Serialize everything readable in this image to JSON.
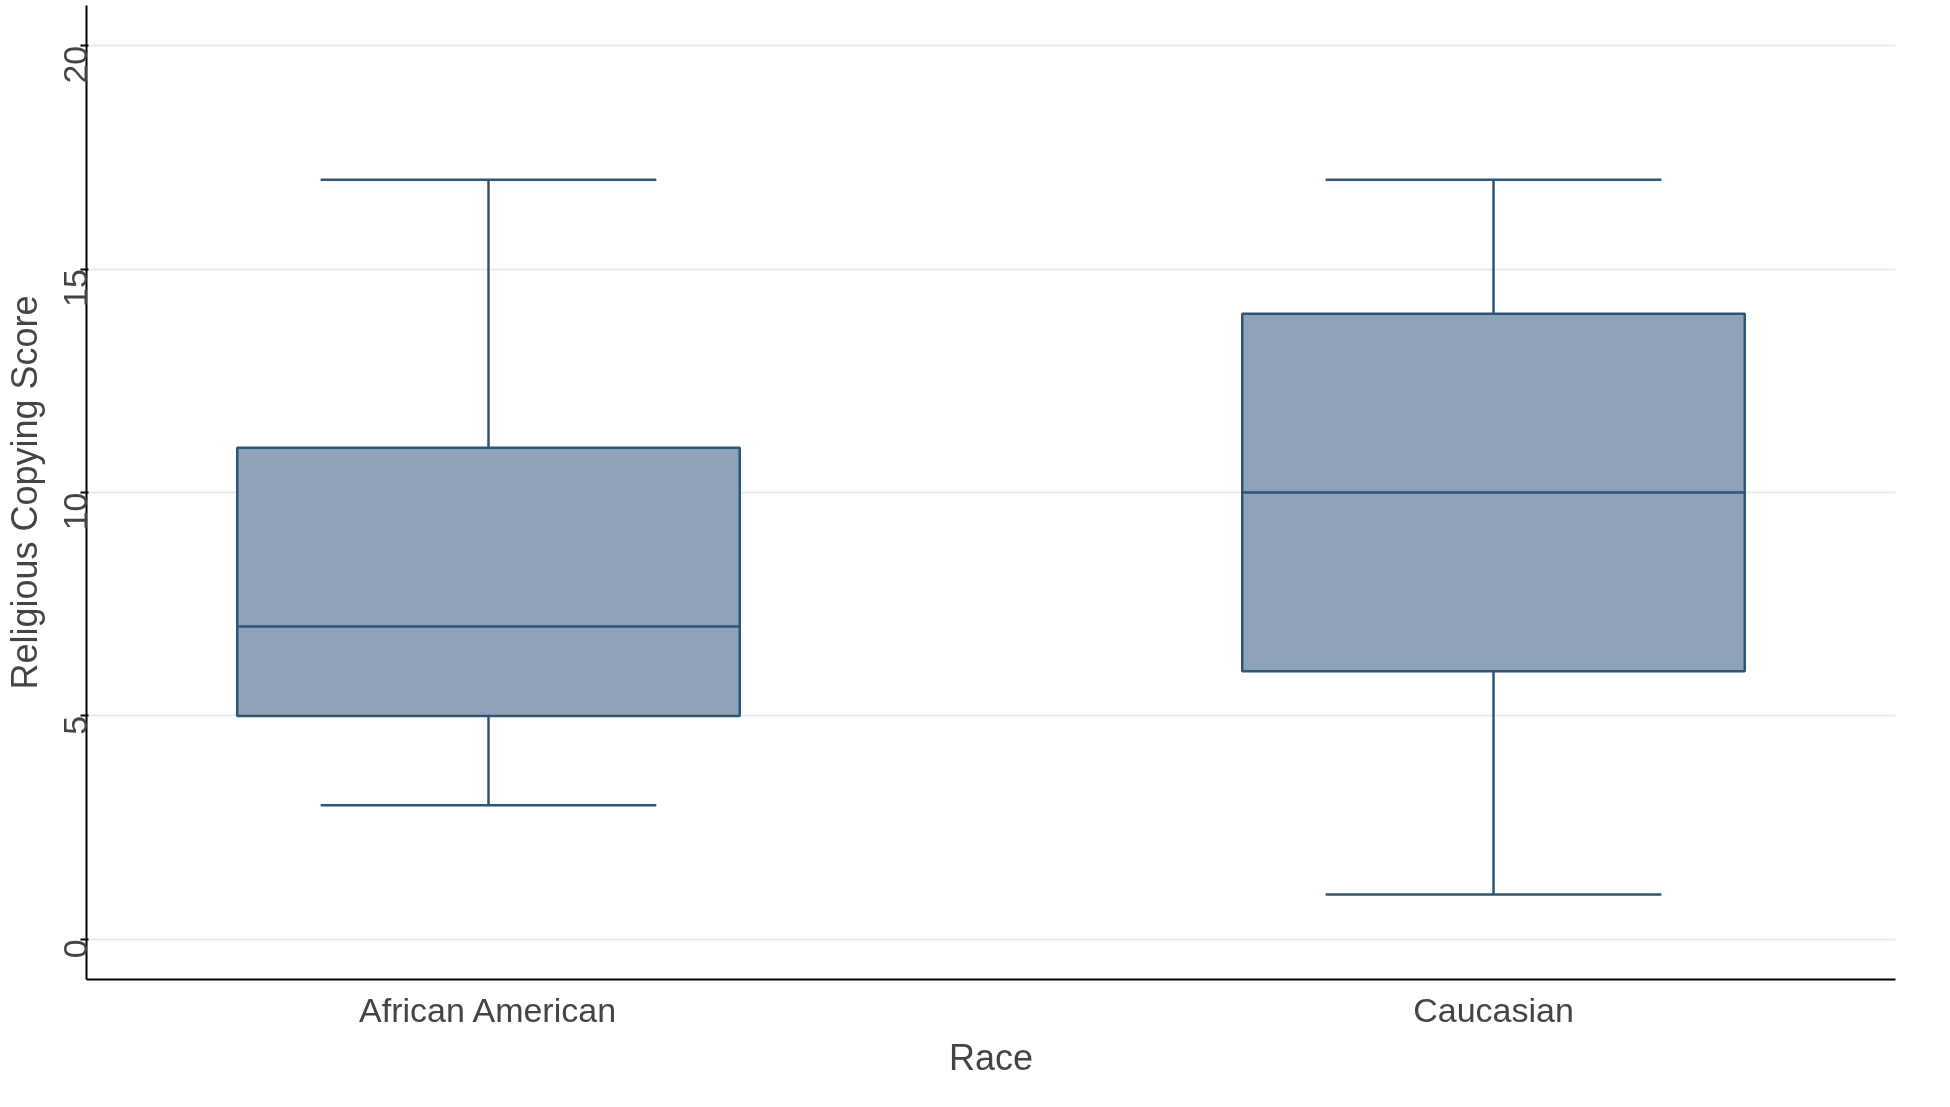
{
  "chart_data": {
    "type": "box",
    "xlabel": "Race",
    "ylabel": "Religious Copying Score",
    "categories": [
      "African American",
      "Caucasian"
    ],
    "color": "#8ea3b8",
    "boxes": [
      {
        "low": 3,
        "q1": 5,
        "median": 7,
        "q3": 11,
        "high": 17
      },
      {
        "low": 1,
        "q1": 6,
        "median": 10,
        "q3": 14,
        "high": 17
      }
    ],
    "ylim": [
      -0.9,
      20.9
    ],
    "yticks": [
      0,
      5,
      10,
      15,
      20
    ],
    "grid": "y"
  }
}
